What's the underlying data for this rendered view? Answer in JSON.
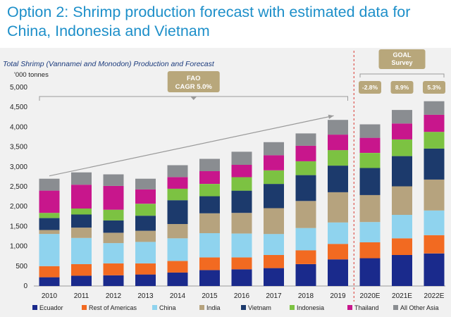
{
  "slide": {
    "title": "Option 2: Shrimp production forecast with estimated data for China, Indonesia and Vietnam"
  },
  "chart_data": {
    "type": "bar",
    "stacked": true,
    "title": "Total Shrimp (Vannamei and Monodon) Production and Forecast",
    "ylabel": "'000 tonnes",
    "ylim": [
      0,
      5000
    ],
    "yticks": [
      0,
      500,
      1000,
      1500,
      2000,
      2500,
      3000,
      3500,
      4000,
      4500,
      5000
    ],
    "ytick_labels": [
      "0",
      "500",
      "1,000",
      "1,500",
      "2,000",
      "2,500",
      "3,000",
      "3,500",
      "4,000",
      "4,500",
      "5,000"
    ],
    "grid": false,
    "legend": "bottom",
    "categories": [
      "2010",
      "2011",
      "2012",
      "2013",
      "2014",
      "2015",
      "2016",
      "2017",
      "2018",
      "2019",
      "2020E",
      "2021E",
      "2022E"
    ],
    "series": [
      {
        "name": "Ecuador",
        "color": "#1a2a8c",
        "values": [
          220,
          260,
          270,
          290,
          340,
          400,
          420,
          450,
          550,
          670,
          700,
          780,
          820
        ]
      },
      {
        "name": "Rest of Americas",
        "color": "#f26a21",
        "values": [
          280,
          290,
          300,
          280,
          290,
          320,
          300,
          330,
          350,
          390,
          400,
          420,
          460
        ]
      },
      {
        "name": "China",
        "color": "#8fd3ee",
        "values": [
          810,
          660,
          510,
          540,
          570,
          610,
          600,
          530,
          560,
          540,
          510,
          590,
          620
        ]
      },
      {
        "name": "India",
        "color": "#b6a37e",
        "values": [
          100,
          260,
          260,
          280,
          360,
          500,
          520,
          650,
          680,
          760,
          680,
          720,
          780
        ]
      },
      {
        "name": "Vietnam",
        "color": "#1c3a6c",
        "values": [
          300,
          330,
          310,
          380,
          600,
          430,
          560,
          610,
          650,
          670,
          680,
          760,
          780
        ]
      },
      {
        "name": "Indonesia",
        "color": "#7cc242",
        "values": [
          130,
          150,
          270,
          300,
          290,
          310,
          340,
          340,
          350,
          390,
          380,
          420,
          420
        ]
      },
      {
        "name": "Thailand",
        "color": "#c8168c",
        "values": [
          560,
          600,
          600,
          360,
          290,
          320,
          310,
          380,
          390,
          390,
          380,
          400,
          430
        ]
      },
      {
        "name": "All Other Asia",
        "color": "#8a8d91",
        "values": [
          300,
          310,
          290,
          270,
          300,
          310,
          330,
          330,
          310,
          370,
          340,
          340,
          340
        ]
      }
    ],
    "annotations": {
      "fao": {
        "line1": "FAO",
        "line2": "CAGR 5.0%"
      },
      "goal": {
        "line1": "GOAL",
        "line2": "Survey"
      },
      "goal_growth": [
        "-2.8%",
        "8.9%",
        "5.3%"
      ]
    }
  }
}
